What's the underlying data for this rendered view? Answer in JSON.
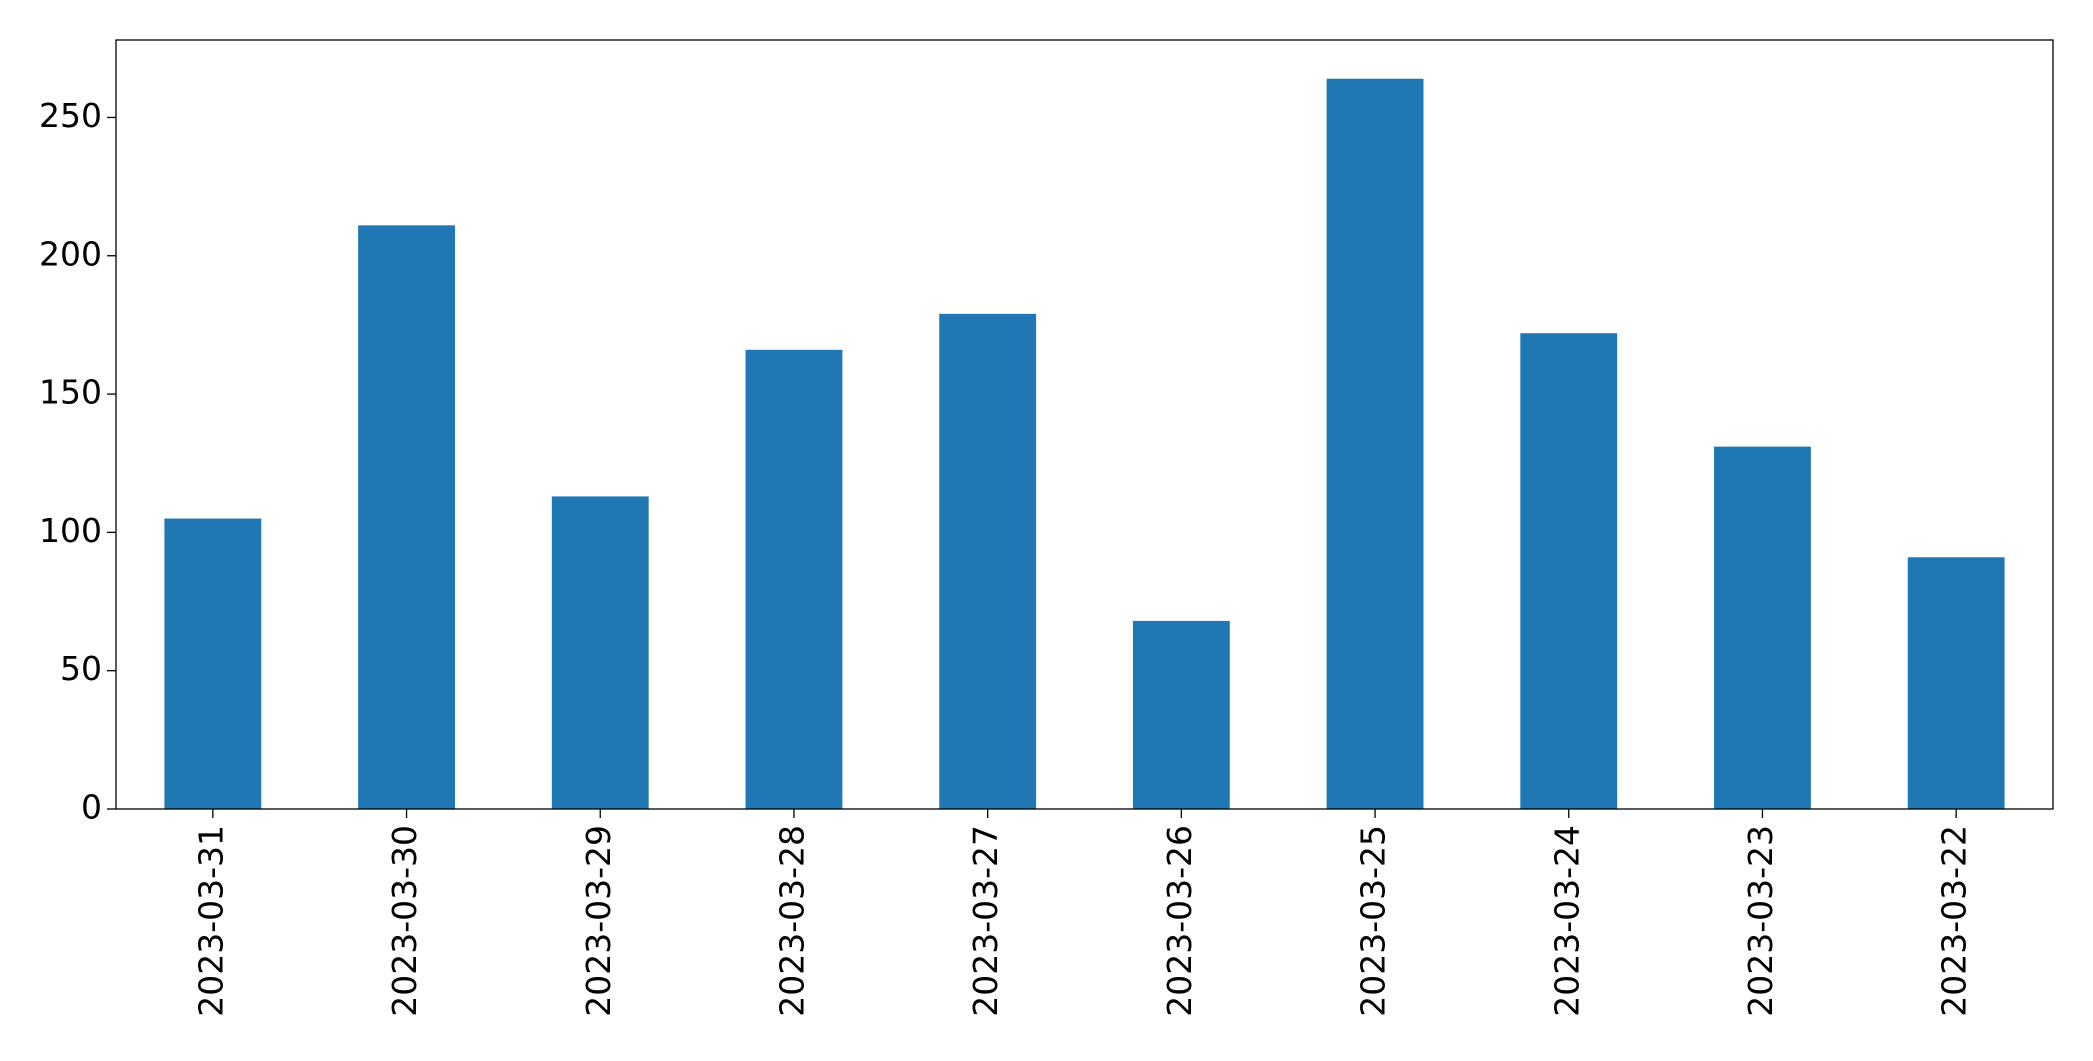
{
  "chart_data": {
    "type": "bar",
    "categories": [
      "2023-03-31",
      "2023-03-30",
      "2023-03-29",
      "2023-03-28",
      "2023-03-27",
      "2023-03-26",
      "2023-03-25",
      "2023-03-24",
      "2023-03-23",
      "2023-03-22"
    ],
    "values": [
      105,
      211,
      113,
      166,
      179,
      68,
      264,
      172,
      131,
      91
    ],
    "color": "#1f77b4",
    "ylim": [
      0,
      278
    ],
    "yticks": [
      0,
      50,
      100,
      150,
      200,
      250
    ],
    "grid": false
  }
}
